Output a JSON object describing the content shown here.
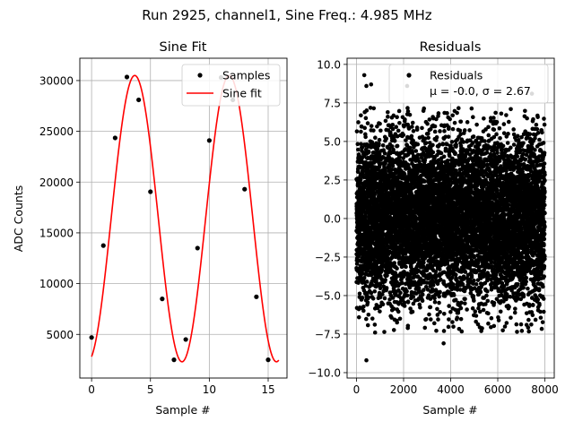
{
  "suptitle": "Run 2925, channel1, Sine Freq.: 4.985 MHz",
  "chart_data": [
    {
      "type": "scatter",
      "title": "Sine Fit",
      "xlabel": "Sample #",
      "ylabel": "ADC Counts",
      "xlim": [
        -1.0,
        16.6
      ],
      "ylim": [
        700,
        32200
      ],
      "xticks": [
        "0",
        "5",
        "10",
        "15"
      ],
      "xtick_values": [
        0,
        5,
        10,
        15
      ],
      "yticks": [
        "5000",
        "10000",
        "15000",
        "20000",
        "25000",
        "30000"
      ],
      "ytick_values": [
        5000,
        10000,
        15000,
        20000,
        25000,
        30000
      ],
      "grid": true,
      "legend_position": "top-right",
      "series": [
        {
          "name": "Samples",
          "kind": "points",
          "color": "#000000",
          "x": [
            0,
            1,
            2,
            3,
            4,
            5,
            6,
            7,
            8,
            9,
            10,
            11,
            12,
            13,
            14,
            15
          ],
          "y": [
            4700,
            13750,
            24350,
            30350,
            28100,
            19050,
            8500,
            2500,
            4500,
            13500,
            24100,
            30300,
            28100,
            19300,
            8700,
            2500
          ]
        },
        {
          "name": "Sine fit",
          "kind": "line",
          "color": "#ff0000",
          "model": {
            "offset": 16400,
            "amplitude": 14100,
            "period": 8.025,
            "phase": -1.3
          },
          "x_range": [
            0,
            15.9
          ]
        }
      ]
    },
    {
      "type": "scatter",
      "title": "Residuals",
      "xlabel": "Sample #",
      "xlim": [
        -400,
        8400
      ],
      "ylim": [
        -10.35,
        10.4
      ],
      "xticks": [
        "0",
        "2000",
        "4000",
        "6000",
        "8000"
      ],
      "xtick_values": [
        0,
        2000,
        4000,
        6000,
        8000
      ],
      "yticks": [
        "−10.0",
        "−7.5",
        "−5.0",
        "−2.5",
        "0.0",
        "2.5",
        "5.0",
        "7.5",
        "10.0"
      ],
      "ytick_values": [
        -10,
        -7.5,
        -5,
        -2.5,
        0,
        2.5,
        5,
        7.5,
        10
      ],
      "grid": true,
      "legend_position": "top-right",
      "legend_lines": [
        "Residuals",
        "μ = -0.0, σ = 2.67"
      ],
      "series": [
        {
          "name": "Residuals",
          "kind": "points",
          "color": "#000000",
          "n_points": 8000,
          "x_range": [
            0,
            7999
          ],
          "mean": -0.0,
          "std": 2.67,
          "x_outliers": [
            330,
            420,
            620,
            2150,
            3700,
            4550,
            5300,
            7450
          ],
          "y_outliers": [
            9.3,
            8.6,
            8.7,
            8.6,
            -8.1,
            8.3,
            -7.3,
            8.1
          ]
        }
      ]
    }
  ]
}
